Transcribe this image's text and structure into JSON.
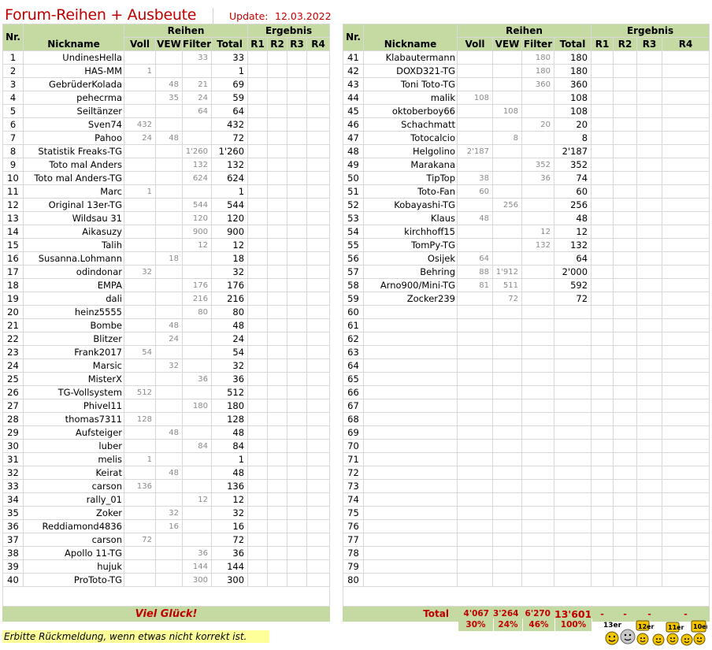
{
  "header": {
    "title": "Forum-Reihen + Ausbeute",
    "update_label": "Update:",
    "update_date": "12.03.2022"
  },
  "columns": {
    "nr": "Nr.",
    "nickname": "Nickname",
    "reihen": "Reihen",
    "ergebnis": "Ergebnis",
    "voll": "Voll",
    "vew": "VEW",
    "filter": "Filter",
    "total": "Total",
    "r1": "R1",
    "r2": "R2",
    "r3": "R3",
    "r4": "R4"
  },
  "left_rows": [
    {
      "nr": "1",
      "nick": "UndinesHella",
      "voll": "",
      "vew": "",
      "filter": "33",
      "total": "33"
    },
    {
      "nr": "2",
      "nick": "HAS-MM",
      "voll": "1",
      "vew": "",
      "filter": "",
      "total": "1"
    },
    {
      "nr": "3",
      "nick": "GebrüderKolada",
      "voll": "",
      "vew": "48",
      "filter": "21",
      "total": "69"
    },
    {
      "nr": "4",
      "nick": "pehecrma",
      "voll": "",
      "vew": "35",
      "filter": "24",
      "total": "59"
    },
    {
      "nr": "5",
      "nick": "Seiltänzer",
      "voll": "",
      "vew": "",
      "filter": "64",
      "total": "64"
    },
    {
      "nr": "6",
      "nick": "Sven74",
      "voll": "432",
      "vew": "",
      "filter": "",
      "total": "432"
    },
    {
      "nr": "7",
      "nick": "Pahoo",
      "voll": "24",
      "vew": "48",
      "filter": "",
      "total": "72"
    },
    {
      "nr": "8",
      "nick": "Statistik Freaks-TG",
      "voll": "",
      "vew": "",
      "filter": "1'260",
      "total": "1'260"
    },
    {
      "nr": "9",
      "nick": "Toto mal Anders",
      "voll": "",
      "vew": "",
      "filter": "132",
      "total": "132"
    },
    {
      "nr": "10",
      "nick": "Toto mal Anders-TG",
      "voll": "",
      "vew": "",
      "filter": "624",
      "total": "624"
    },
    {
      "nr": "11",
      "nick": "Marc",
      "voll": "1",
      "vew": "",
      "filter": "",
      "total": "1"
    },
    {
      "nr": "12",
      "nick": "Original 13er-TG",
      "voll": "",
      "vew": "",
      "filter": "544",
      "total": "544"
    },
    {
      "nr": "13",
      "nick": "Wildsau 31",
      "voll": "",
      "vew": "",
      "filter": "120",
      "total": "120"
    },
    {
      "nr": "14",
      "nick": "Aikasuzy",
      "voll": "",
      "vew": "",
      "filter": "900",
      "total": "900"
    },
    {
      "nr": "15",
      "nick": "Talih",
      "voll": "",
      "vew": "",
      "filter": "12",
      "total": "12"
    },
    {
      "nr": "16",
      "nick": "Susanna.Lohmann",
      "voll": "",
      "vew": "18",
      "filter": "",
      "total": "18"
    },
    {
      "nr": "17",
      "nick": "odindonar",
      "voll": "32",
      "vew": "",
      "filter": "",
      "total": "32"
    },
    {
      "nr": "18",
      "nick": "EMPA",
      "voll": "",
      "vew": "",
      "filter": "176",
      "total": "176"
    },
    {
      "nr": "19",
      "nick": "dali",
      "voll": "",
      "vew": "",
      "filter": "216",
      "total": "216"
    },
    {
      "nr": "20",
      "nick": "heinz5555",
      "voll": "",
      "vew": "",
      "filter": "80",
      "total": "80"
    },
    {
      "nr": "21",
      "nick": "Bombe",
      "voll": "",
      "vew": "48",
      "filter": "",
      "total": "48"
    },
    {
      "nr": "22",
      "nick": "Blitzer",
      "voll": "",
      "vew": "24",
      "filter": "",
      "total": "24"
    },
    {
      "nr": "23",
      "nick": "Frank2017",
      "voll": "54",
      "vew": "",
      "filter": "",
      "total": "54"
    },
    {
      "nr": "24",
      "nick": "Marsic",
      "voll": "",
      "vew": "32",
      "filter": "",
      "total": "32"
    },
    {
      "nr": "25",
      "nick": "MisterX",
      "voll": "",
      "vew": "",
      "filter": "36",
      "total": "36"
    },
    {
      "nr": "26",
      "nick": "TG-Vollsystem",
      "voll": "512",
      "vew": "",
      "filter": "",
      "total": "512"
    },
    {
      "nr": "27",
      "nick": "Phivel11",
      "voll": "",
      "vew": "",
      "filter": "180",
      "total": "180"
    },
    {
      "nr": "28",
      "nick": "thomas7311",
      "voll": "128",
      "vew": "",
      "filter": "",
      "total": "128"
    },
    {
      "nr": "29",
      "nick": "Aufsteiger",
      "voll": "",
      "vew": "48",
      "filter": "",
      "total": "48"
    },
    {
      "nr": "30",
      "nick": "luber",
      "voll": "",
      "vew": "",
      "filter": "84",
      "total": "84"
    },
    {
      "nr": "31",
      "nick": "melis",
      "voll": "1",
      "vew": "",
      "filter": "",
      "total": "1"
    },
    {
      "nr": "32",
      "nick": "Keirat",
      "voll": "",
      "vew": "48",
      "filter": "",
      "total": "48"
    },
    {
      "nr": "33",
      "nick": "carson",
      "voll": "136",
      "vew": "",
      "filter": "",
      "total": "136"
    },
    {
      "nr": "34",
      "nick": "rally_01",
      "voll": "",
      "vew": "",
      "filter": "12",
      "total": "12"
    },
    {
      "nr": "35",
      "nick": "Zoker",
      "voll": "",
      "vew": "32",
      "filter": "",
      "total": "32"
    },
    {
      "nr": "36",
      "nick": "Reddiamond4836",
      "voll": "",
      "vew": "16",
      "filter": "",
      "total": "16"
    },
    {
      "nr": "37",
      "nick": "carson",
      "voll": "72",
      "vew": "",
      "filter": "",
      "total": "72"
    },
    {
      "nr": "38",
      "nick": "Apollo 11-TG",
      "voll": "",
      "vew": "",
      "filter": "36",
      "total": "36"
    },
    {
      "nr": "39",
      "nick": "hujuk",
      "voll": "",
      "vew": "",
      "filter": "144",
      "total": "144"
    },
    {
      "nr": "40",
      "nick": "ProToto-TG",
      "voll": "",
      "vew": "",
      "filter": "300",
      "total": "300"
    }
  ],
  "right_rows": [
    {
      "nr": "41",
      "nick": "Klabautermann",
      "voll": "",
      "vew": "",
      "filter": "180",
      "total": "180"
    },
    {
      "nr": "42",
      "nick": "DOXD321-TG",
      "voll": "",
      "vew": "",
      "filter": "180",
      "total": "180"
    },
    {
      "nr": "43",
      "nick": "Toni Toto-TG",
      "voll": "",
      "vew": "",
      "filter": "360",
      "total": "360"
    },
    {
      "nr": "44",
      "nick": "malik",
      "voll": "108",
      "vew": "",
      "filter": "",
      "total": "108"
    },
    {
      "nr": "45",
      "nick": "oktoberboy66",
      "voll": "",
      "vew": "108",
      "filter": "",
      "total": "108"
    },
    {
      "nr": "46",
      "nick": "Schachmatt",
      "voll": "",
      "vew": "",
      "filter": "20",
      "total": "20"
    },
    {
      "nr": "47",
      "nick": "Totocalcio",
      "voll": "",
      "vew": "8",
      "filter": "",
      "total": "8"
    },
    {
      "nr": "48",
      "nick": "Helgolino",
      "voll": "2'187",
      "vew": "",
      "filter": "",
      "total": "2'187"
    },
    {
      "nr": "49",
      "nick": "Marakana",
      "voll": "",
      "vew": "",
      "filter": "352",
      "total": "352"
    },
    {
      "nr": "50",
      "nick": "TipTop",
      "voll": "38",
      "vew": "",
      "filter": "36",
      "total": "74"
    },
    {
      "nr": "51",
      "nick": "Toto-Fan",
      "voll": "60",
      "vew": "",
      "filter": "",
      "total": "60"
    },
    {
      "nr": "52",
      "nick": "Kobayashi-TG",
      "voll": "",
      "vew": "256",
      "filter": "",
      "total": "256"
    },
    {
      "nr": "53",
      "nick": "Klaus",
      "voll": "48",
      "vew": "",
      "filter": "",
      "total": "48"
    },
    {
      "nr": "54",
      "nick": "kirchhoff15",
      "voll": "",
      "vew": "",
      "filter": "12",
      "total": "12"
    },
    {
      "nr": "55",
      "nick": "TomPy-TG",
      "voll": "",
      "vew": "",
      "filter": "132",
      "total": "132"
    },
    {
      "nr": "56",
      "nick": "Osijek",
      "voll": "64",
      "vew": "",
      "filter": "",
      "total": "64"
    },
    {
      "nr": "57",
      "nick": "Behring",
      "voll": "88",
      "vew": "1'912",
      "filter": "",
      "total": "2'000"
    },
    {
      "nr": "58",
      "nick": "Arno900/Mini-TG",
      "voll": "81",
      "vew": "511",
      "filter": "",
      "total": "592"
    },
    {
      "nr": "59",
      "nick": "Zocker239",
      "voll": "",
      "vew": "72",
      "filter": "",
      "total": "72"
    },
    {
      "nr": "60",
      "nick": "",
      "voll": "",
      "vew": "",
      "filter": "",
      "total": ""
    },
    {
      "nr": "61",
      "nick": "",
      "voll": "",
      "vew": "",
      "filter": "",
      "total": ""
    },
    {
      "nr": "62",
      "nick": "",
      "voll": "",
      "vew": "",
      "filter": "",
      "total": ""
    },
    {
      "nr": "63",
      "nick": "",
      "voll": "",
      "vew": "",
      "filter": "",
      "total": ""
    },
    {
      "nr": "64",
      "nick": "",
      "voll": "",
      "vew": "",
      "filter": "",
      "total": ""
    },
    {
      "nr": "65",
      "nick": "",
      "voll": "",
      "vew": "",
      "filter": "",
      "total": ""
    },
    {
      "nr": "66",
      "nick": "",
      "voll": "",
      "vew": "",
      "filter": "",
      "total": ""
    },
    {
      "nr": "67",
      "nick": "",
      "voll": "",
      "vew": "",
      "filter": "",
      "total": ""
    },
    {
      "nr": "68",
      "nick": "",
      "voll": "",
      "vew": "",
      "filter": "",
      "total": ""
    },
    {
      "nr": "69",
      "nick": "",
      "voll": "",
      "vew": "",
      "filter": "",
      "total": ""
    },
    {
      "nr": "70",
      "nick": "",
      "voll": "",
      "vew": "",
      "filter": "",
      "total": ""
    },
    {
      "nr": "71",
      "nick": "",
      "voll": "",
      "vew": "",
      "filter": "",
      "total": ""
    },
    {
      "nr": "72",
      "nick": "",
      "voll": "",
      "vew": "",
      "filter": "",
      "total": ""
    },
    {
      "nr": "73",
      "nick": "",
      "voll": "",
      "vew": "",
      "filter": "",
      "total": ""
    },
    {
      "nr": "74",
      "nick": "",
      "voll": "",
      "vew": "",
      "filter": "",
      "total": ""
    },
    {
      "nr": "75",
      "nick": "",
      "voll": "",
      "vew": "",
      "filter": "",
      "total": ""
    },
    {
      "nr": "76",
      "nick": "",
      "voll": "",
      "vew": "",
      "filter": "",
      "total": ""
    },
    {
      "nr": "77",
      "nick": "",
      "voll": "",
      "vew": "",
      "filter": "",
      "total": ""
    },
    {
      "nr": "78",
      "nick": "",
      "voll": "",
      "vew": "",
      "filter": "",
      "total": ""
    },
    {
      "nr": "79",
      "nick": "",
      "voll": "",
      "vew": "",
      "filter": "",
      "total": ""
    },
    {
      "nr": "80",
      "nick": "",
      "voll": "",
      "vew": "",
      "filter": "",
      "total": ""
    }
  ],
  "footer": {
    "left_message": "Viel Glück!",
    "total_label": "Total",
    "total_voll": "4'067",
    "total_vew": "3'264",
    "total_filter": "6'270",
    "total_sum": "13'601",
    "dashes": [
      "-",
      "-",
      "-",
      "-"
    ],
    "pct_voll": "30%",
    "pct_vew": "24%",
    "pct_filter": "46%",
    "pct_total": "100%",
    "note": "Erbitte Rückmeldung, wenn etwas nicht korrekt ist."
  },
  "smileys": {
    "icon": "smiley-trophy-icons",
    "labels": [
      "13er",
      "12er",
      "11er",
      "10er"
    ]
  },
  "colors": {
    "header_green": "#c5d9a2",
    "accent_red": "#c00000",
    "note_yellow": "#ffff99",
    "muted_gray": "#8a8a8a"
  }
}
